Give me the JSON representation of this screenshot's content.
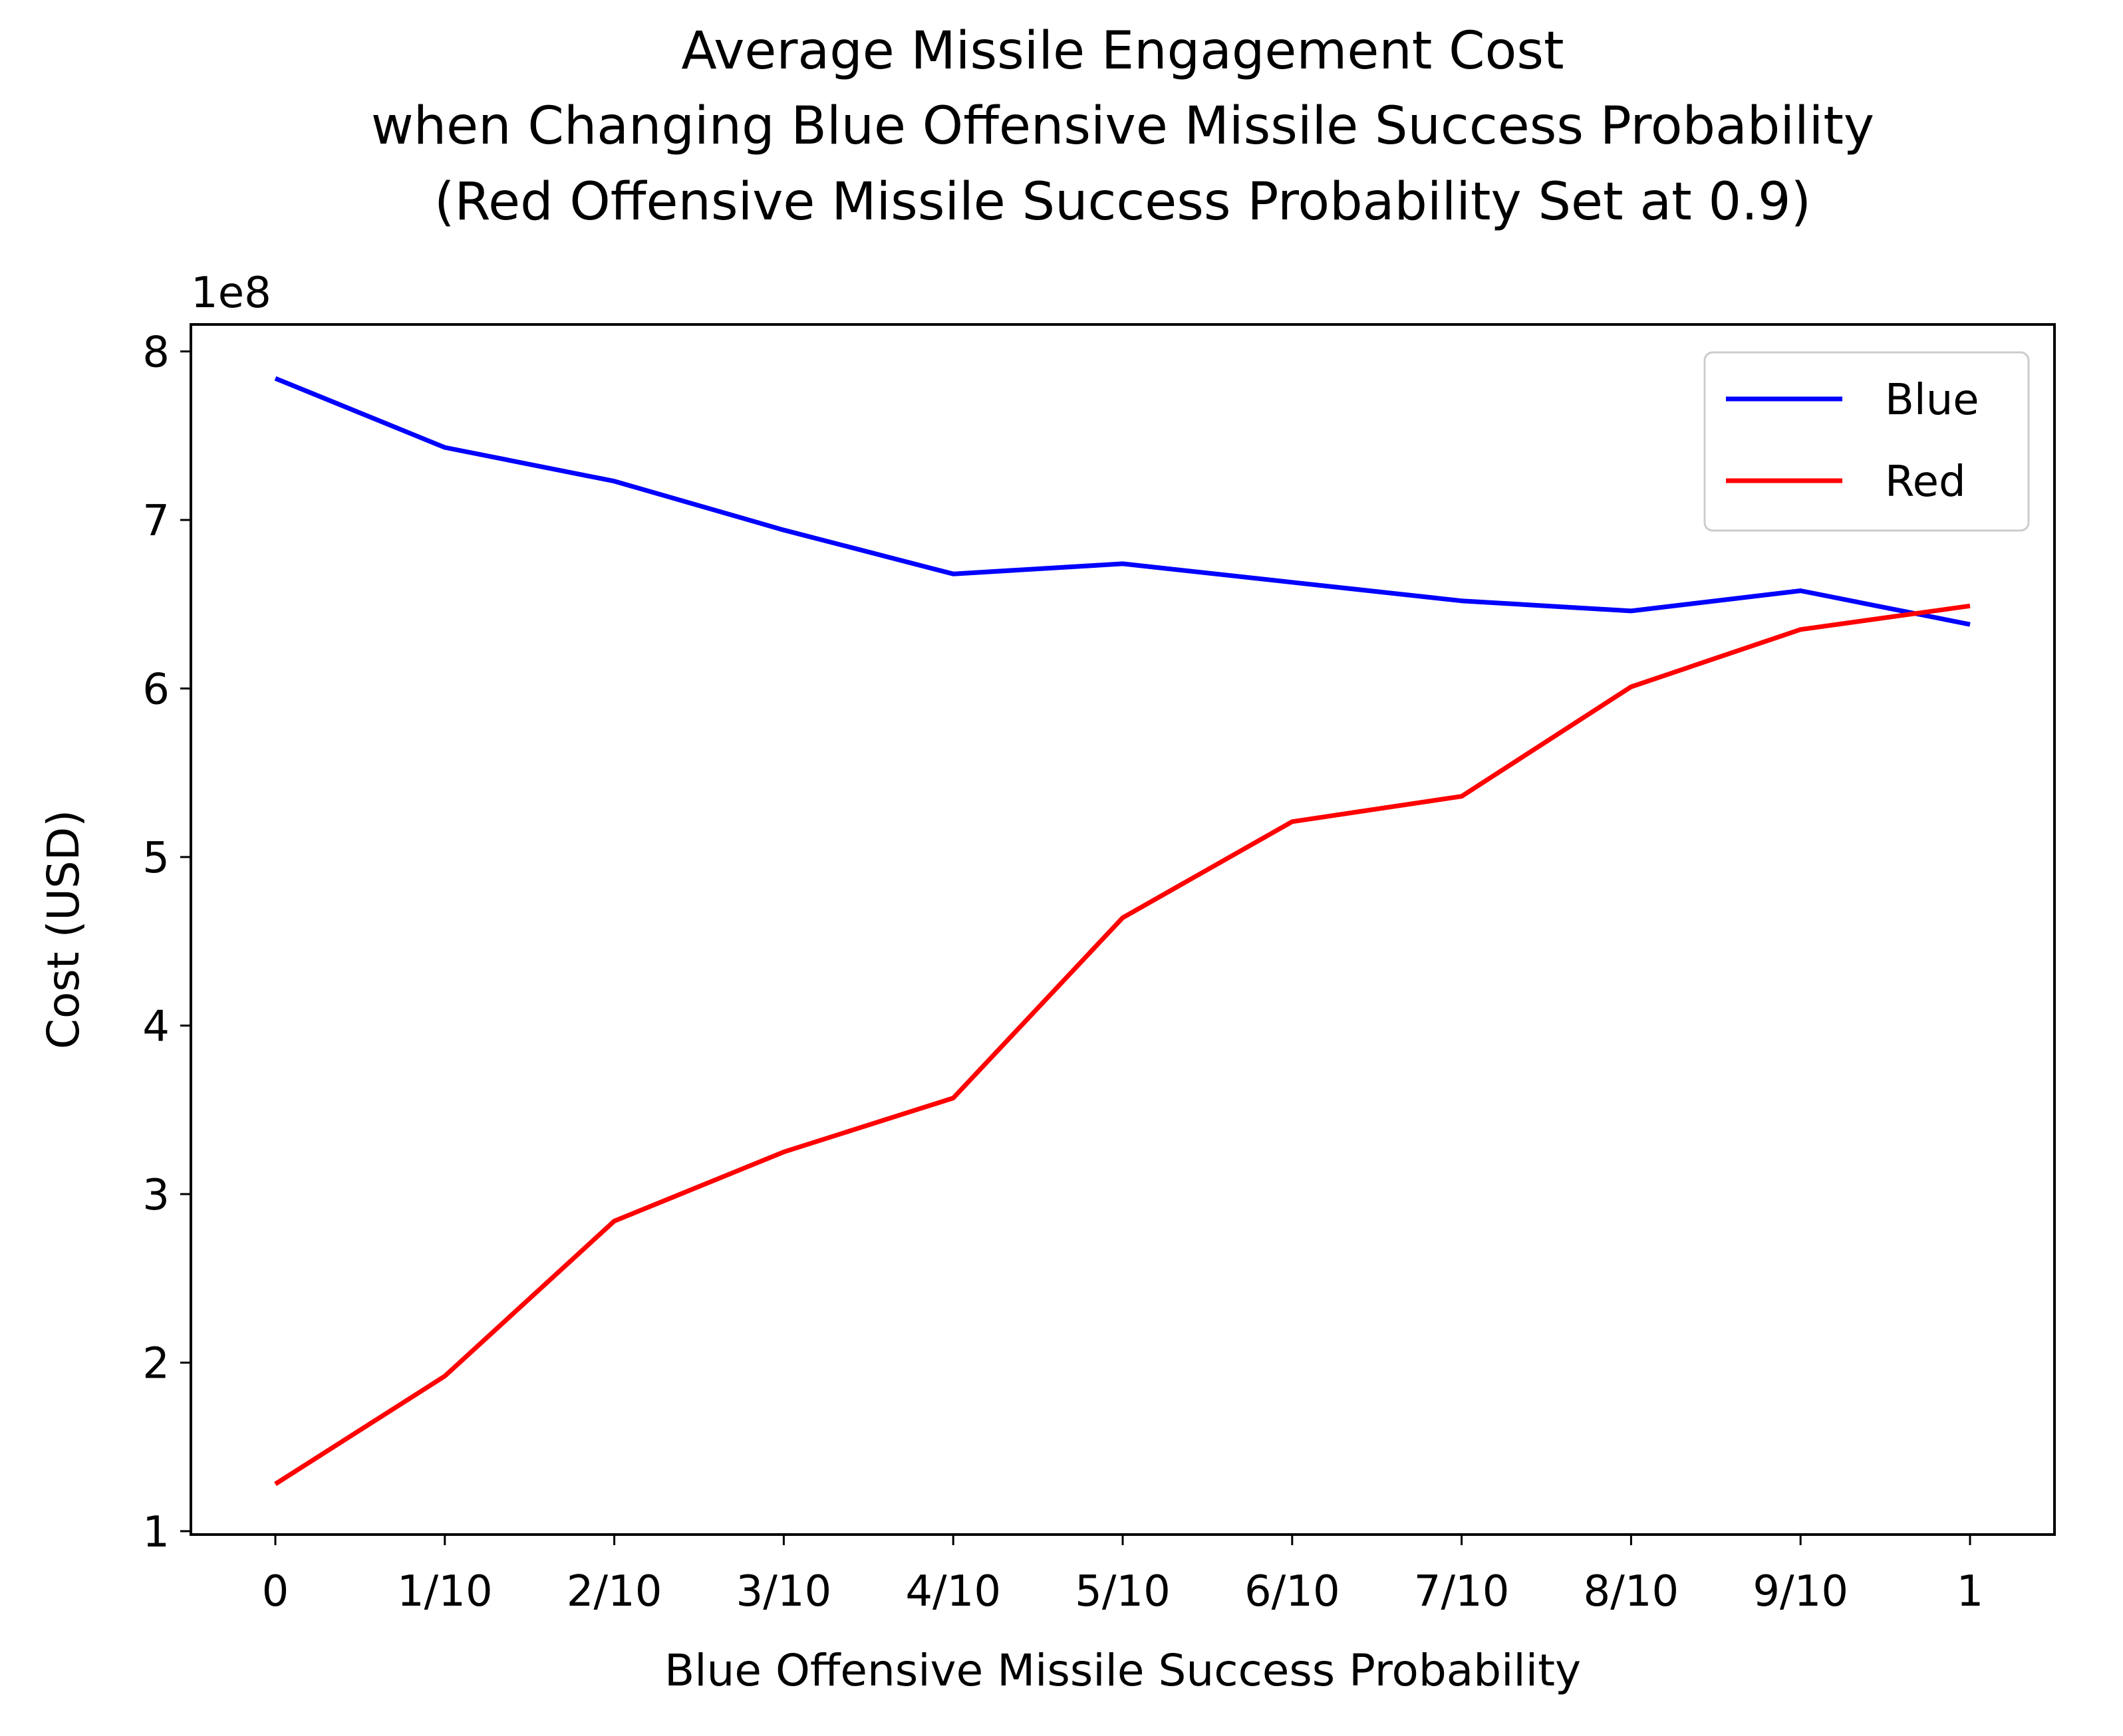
{
  "chart_data": {
    "type": "line",
    "title_lines": [
      "Average Missile Engagement Cost",
      "when Changing Blue Offensive Missile Success Probability",
      "(Red Offensive Missile Success Probability Set at 0.9)"
    ],
    "xlabel": "Blue Offensive Missile Success Probability",
    "ylabel": "Cost (USD)",
    "y_offset_label": "1e8",
    "categories": [
      "0",
      "1/10",
      "2/10",
      "3/10",
      "4/10",
      "5/10",
      "6/10",
      "7/10",
      "8/10",
      "9/10",
      "1"
    ],
    "y_ticks": [
      1,
      2,
      3,
      4,
      5,
      6,
      7,
      8
    ],
    "ylim": [
      0.98,
      8.16
    ],
    "series": [
      {
        "name": "Blue",
        "color": "#0000ff",
        "values": [
          7.84,
          7.43,
          7.23,
          6.94,
          6.68,
          6.74,
          6.63,
          6.52,
          6.46,
          6.58,
          6.38
        ]
      },
      {
        "name": "Red",
        "color": "#ff0000",
        "values": [
          1.28,
          1.92,
          2.84,
          3.25,
          3.57,
          4.64,
          5.21,
          5.36,
          6.01,
          6.35,
          6.49
        ]
      }
    ],
    "legend_position": "upper right",
    "grid": false
  }
}
